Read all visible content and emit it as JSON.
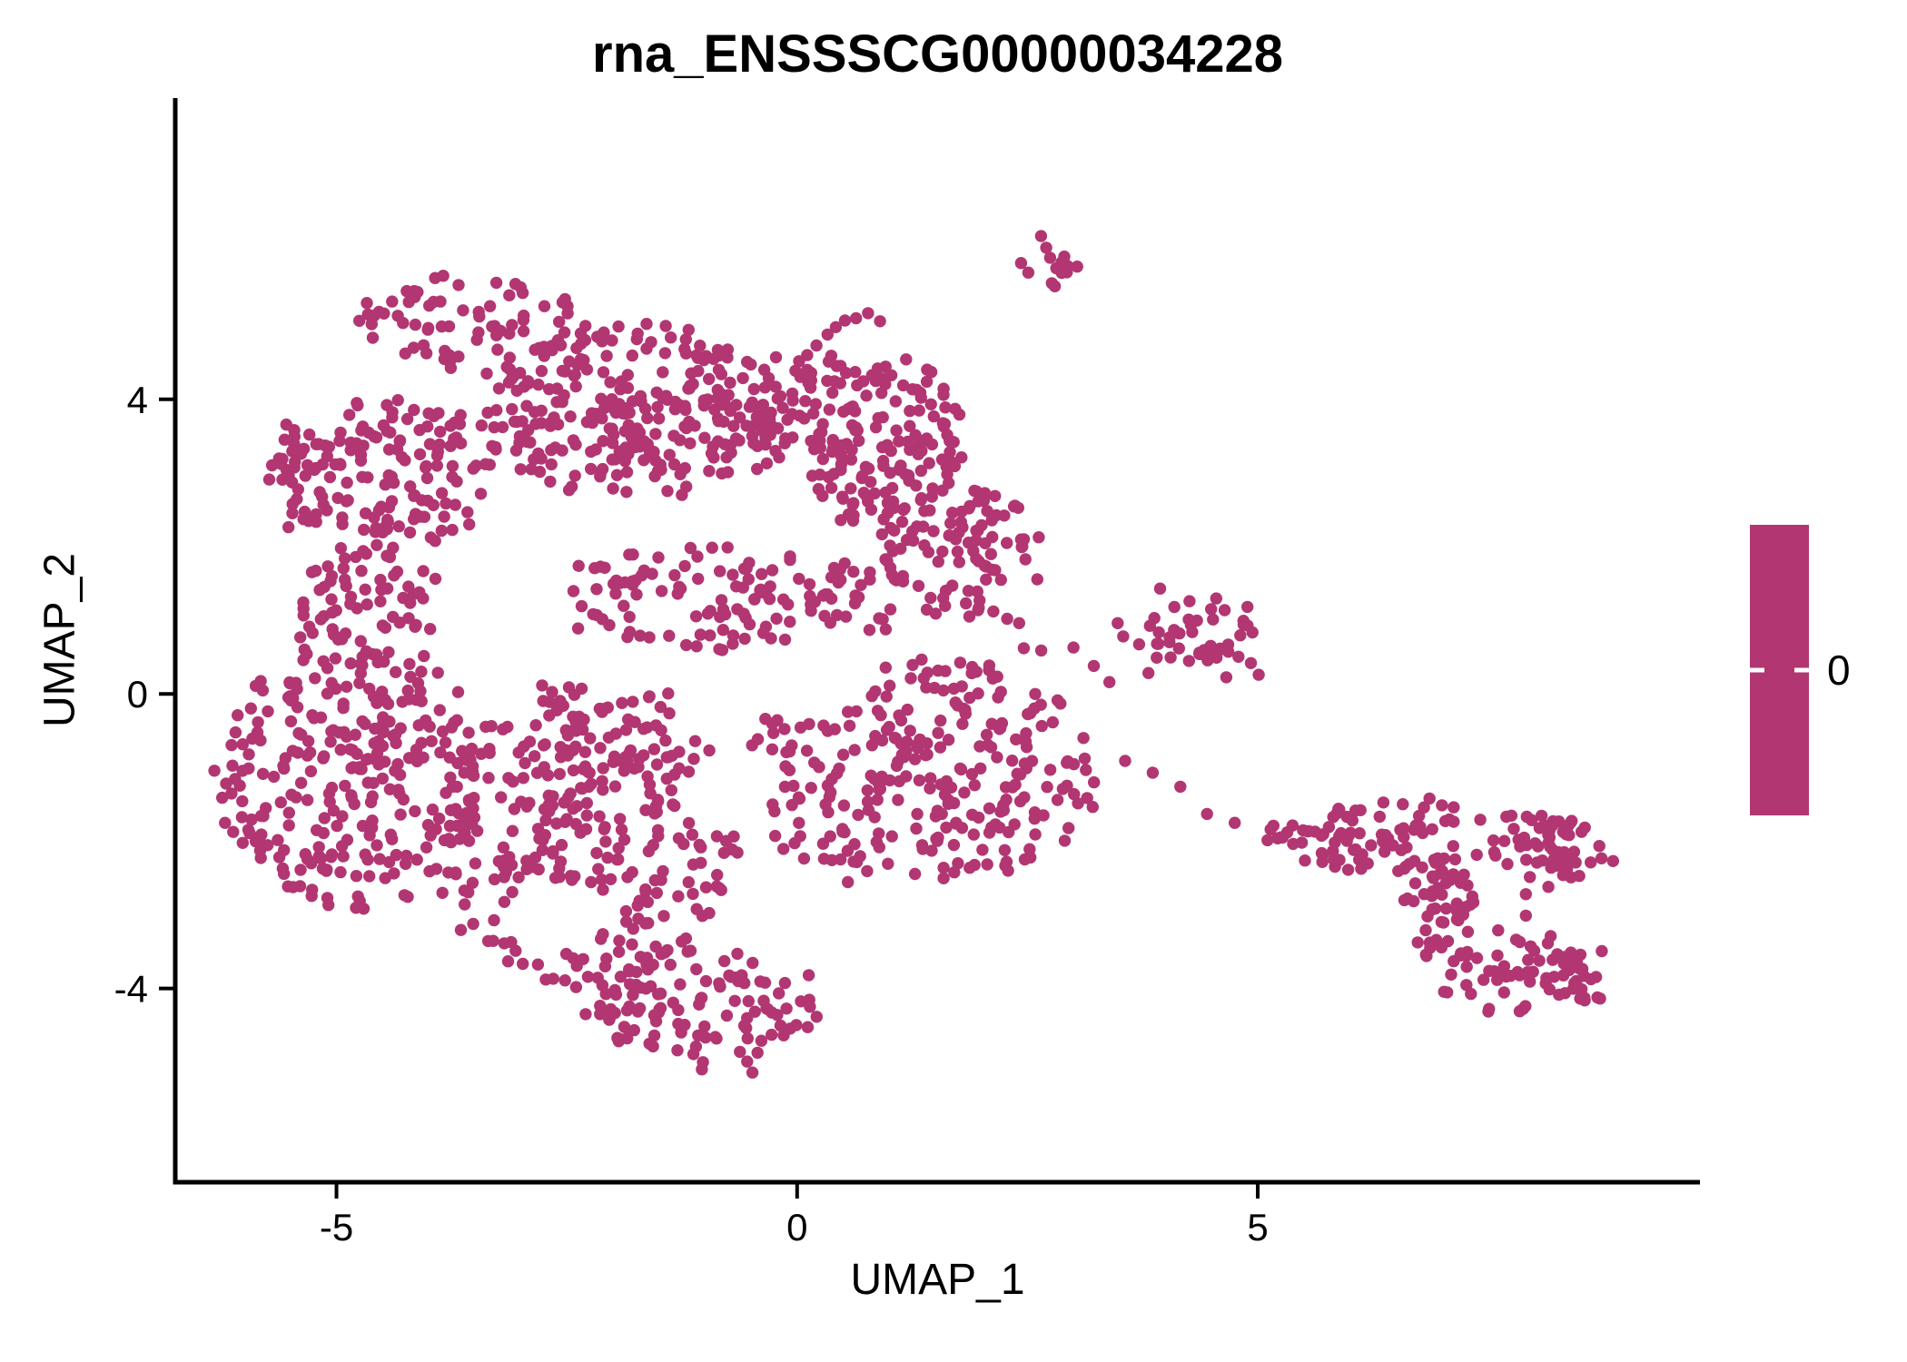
{
  "chart_data": {
    "type": "scatter",
    "title": "rna_ENSSSCG00000034228",
    "xlabel": "UMAP_1",
    "ylabel": "UMAP_2",
    "xlim": [
      -6.75,
      9.8
    ],
    "ylim": [
      -6.63,
      8.09
    ],
    "grid": false,
    "x_ticks": [
      {
        "value": -5,
        "label": "-5"
      },
      {
        "value": 0,
        "label": "0"
      },
      {
        "value": 5,
        "label": "5"
      }
    ],
    "y_ticks": [
      {
        "value": 4,
        "label": "4"
      },
      {
        "value": 0,
        "label": "0"
      },
      {
        "value": -4,
        "label": "-4"
      }
    ],
    "point_color": "#B23672",
    "axis_color": "#000000",
    "point_radius_px": 6.7,
    "seed": 12345,
    "legend": {
      "type": "colorbar",
      "color": "#B23672",
      "tick_color": "#FFFFFF",
      "tick_label": "0",
      "tick_value": 0
    },
    "clusters": [
      {
        "name": "north-core",
        "cx": -1.77,
        "cy": 3.86,
        "rx": 1.68,
        "ry": 1.17,
        "n": 280
      },
      {
        "name": "north-right",
        "cx": 0.7,
        "cy": 3.49,
        "rx": 1.18,
        "ry": 1.11,
        "n": 180
      },
      {
        "name": "north-right-lower",
        "cx": 1.69,
        "cy": 2.01,
        "rx": 0.89,
        "ry": 0.86,
        "n": 100
      },
      {
        "name": "north-left-wing",
        "cx": -4.43,
        "cy": 3.0,
        "rx": 1.18,
        "ry": 1.05,
        "n": 140
      },
      {
        "name": "north-top-band",
        "cx": -3.54,
        "cy": 5.05,
        "rx": 1.28,
        "ry": 0.56,
        "n": 70
      },
      {
        "name": "north-left-tip",
        "cx": -5.42,
        "cy": 3.0,
        "rx": 0.39,
        "ry": 0.74,
        "n": 25
      },
      {
        "name": "south-left",
        "cx": -4.83,
        "cy": -1.07,
        "rx": 1.38,
        "ry": 1.85,
        "n": 280
      },
      {
        "name": "south-mid",
        "cx": -2.26,
        "cy": -1.94,
        "rx": 1.68,
        "ry": 2.1,
        "n": 320
      },
      {
        "name": "south-right",
        "cx": 1.3,
        "cy": -1.07,
        "rx": 1.9,
        "ry": 1.55,
        "n": 270
      },
      {
        "name": "south-bottom-tip",
        "cx": -0.98,
        "cy": -4.28,
        "rx": 1.28,
        "ry": 0.8,
        "n": 110
      },
      {
        "name": "mid-bridge-band",
        "cx": -0.78,
        "cy": 1.27,
        "rx": 2.27,
        "ry": 0.68,
        "n": 130
      },
      {
        "name": "left-bridge",
        "cx": -4.73,
        "cy": 1.27,
        "rx": 0.89,
        "ry": 0.68,
        "n": 60
      },
      {
        "name": "right-mid-cluster",
        "cx": 4.37,
        "cy": 0.72,
        "rx": 0.6,
        "ry": 0.66,
        "n": 48
      },
      {
        "name": "tail-upper-band",
        "cx": 6.72,
        "cy": -1.94,
        "rx": 1.68,
        "ry": 0.47,
        "n": 110
      },
      {
        "name": "tail-right-clump",
        "cx": 8.3,
        "cy": -2.06,
        "rx": 0.54,
        "ry": 0.47,
        "n": 40
      },
      {
        "name": "tail-descender",
        "cx": 7.02,
        "cy": -2.93,
        "rx": 0.44,
        "ry": 0.68,
        "n": 50
      },
      {
        "name": "tail-bottom-arc",
        "cx": 7.91,
        "cy": -3.85,
        "rx": 0.89,
        "ry": 0.49,
        "n": 70
      },
      {
        "name": "top-small-blob",
        "cx": 2.8,
        "cy": 5.86,
        "rx": 0.3,
        "ry": 0.34,
        "n": 14
      }
    ],
    "holes": [
      {
        "cx": -2.85,
        "cy": 1.09,
        "rx": 0.49,
        "ry": 0.56
      },
      {
        "cx": 0.31,
        "cy": 0.28,
        "rx": 0.54,
        "ry": 0.56
      },
      {
        "cx": -2.66,
        "cy": -3.05,
        "rx": 0.54,
        "ry": 0.49
      },
      {
        "cx": -0.78,
        "cy": -1.44,
        "rx": 0.44,
        "ry": 0.49
      },
      {
        "cx": -0.29,
        "cy": 2.51,
        "rx": 0.49,
        "ry": 0.49
      }
    ],
    "points": [
      [
        1.86,
        1.4
      ],
      [
        1.98,
        1.27
      ],
      [
        2.13,
        1.12
      ],
      [
        2.28,
        1.02
      ],
      [
        2.41,
        0.96
      ],
      [
        2.46,
        0.62
      ],
      [
        2.65,
        0.59
      ],
      [
        3.0,
        0.63
      ],
      [
        3.22,
        0.38
      ],
      [
        3.39,
        0.16
      ],
      [
        3.48,
        0.96
      ],
      [
        3.54,
        0.78
      ],
      [
        3.94,
        1.43
      ],
      [
        1.87,
        1.05
      ],
      [
        5.01,
        0.26
      ],
      [
        0.11,
        4.6
      ],
      [
        0.21,
        4.73
      ],
      [
        0.33,
        4.88
      ],
      [
        0.42,
        4.98
      ],
      [
        0.52,
        5.07
      ],
      [
        0.64,
        5.1
      ],
      [
        0.77,
        5.17
      ],
      [
        0.9,
        5.06
      ],
      [
        2.51,
        5.72
      ],
      [
        -0.86,
        4.67
      ],
      [
        -0.23,
        4.57
      ],
      [
        0.11,
        4.4
      ],
      [
        3.56,
        -0.91
      ],
      [
        3.86,
        -1.07
      ],
      [
        4.16,
        -1.26
      ],
      [
        4.45,
        -1.63
      ],
      [
        4.75,
        -1.75
      ],
      [
        5.14,
        -1.84
      ],
      [
        5.32,
        -1.88
      ],
      [
        5.17,
        -1.79
      ],
      [
        5.27,
        -1.95
      ],
      [
        7.91,
        -2.72
      ],
      [
        7.91,
        -3.01
      ],
      [
        7.61,
        -3.21
      ],
      [
        8.4,
        -2.49
      ],
      [
        -6.24,
        -1.41
      ],
      [
        -6.21,
        -1.75
      ]
    ]
  }
}
